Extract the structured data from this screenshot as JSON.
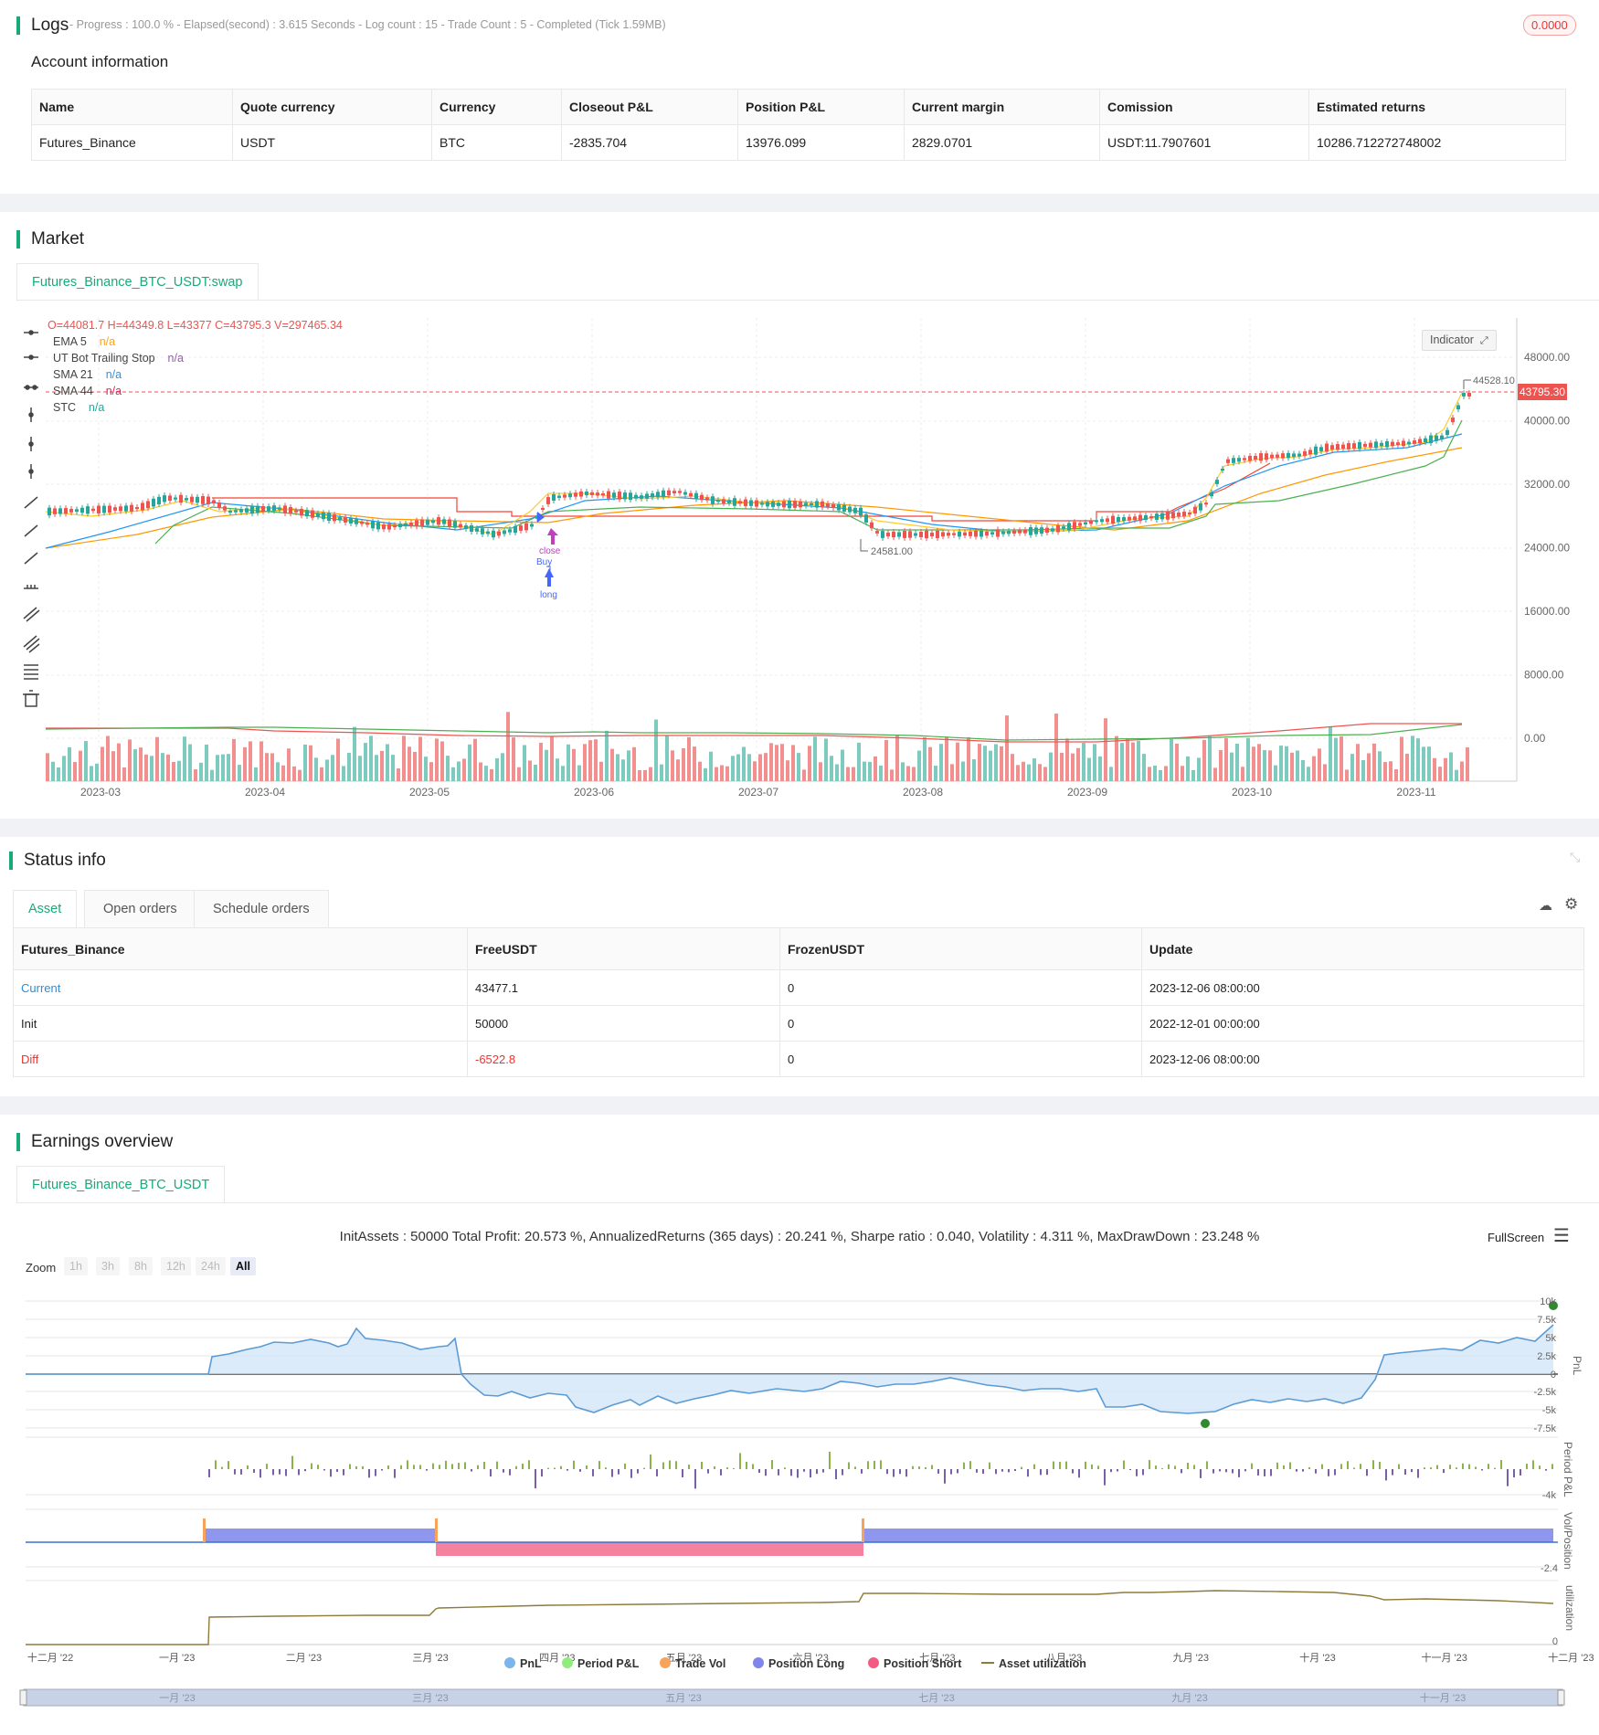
{
  "logs": {
    "title": "Logs",
    "meta": "- Progress : 100.0 % - Elapsed(second) : 3.615  Seconds - Log count : 15 - Trade Count : 5 - Completed (Tick 1.59MB)",
    "badge": "0.0000"
  },
  "account": {
    "title": "Account information",
    "columns": [
      "Name",
      "Quote currency",
      "Currency",
      "Closeout P&L",
      "Position P&L",
      "Current margin",
      "Comission",
      "Estimated returns"
    ],
    "row": [
      "Futures_Binance",
      "USDT",
      "BTC",
      "-2835.704",
      "13976.099",
      "2829.0701",
      "USDT:11.7907601",
      "10286.712272748002"
    ]
  },
  "market": {
    "title": "Market",
    "tab": "Futures_Binance_BTC_USDT:swap",
    "ohlc": "O=44081.7 H=44349.8 L=43377 C=43795.3 V=297465.34",
    "legend": [
      {
        "name": "EMA 5",
        "value": "n/a",
        "color": "#f7a325"
      },
      {
        "name": "UT Bot Trailing Stop",
        "value": "n/a",
        "color": "#9b59b6"
      },
      {
        "name": "SMA 21",
        "value": "n/a",
        "color": "#2196f3"
      },
      {
        "name": "SMA 44",
        "value": "n/a",
        "color": "#e91e63"
      },
      {
        "name": "STC",
        "value": "n/a",
        "color": "#26a69a"
      }
    ],
    "indicator_button": "Indicator",
    "y_ticks": [
      "48000.00",
      "40000.00",
      "32000.00",
      "24000.00",
      "16000.00",
      "8000.00",
      "0.00"
    ],
    "x_ticks": [
      "2023-03",
      "2023-04",
      "2023-05",
      "2023-06",
      "2023-07",
      "2023-08",
      "2023-09",
      "2023-10",
      "2023-11"
    ],
    "last_price": "43795.30",
    "high_label": "44528.10",
    "low_label": "24581.00",
    "markers": [
      "close",
      "Buy",
      "long"
    ]
  },
  "status": {
    "title": "Status info",
    "tabs": [
      "Asset",
      "Open orders",
      "Schedule orders"
    ],
    "columns": [
      "Futures_Binance",
      "FreeUSDT",
      "FrozenUSDT",
      "Update"
    ],
    "rows": [
      [
        "Current",
        "43477.1",
        "0",
        "2023-12-06 08:00:00"
      ],
      [
        "Init",
        "50000",
        "0",
        "2022-12-01 00:00:00"
      ],
      [
        "Diff",
        "-6522.8",
        "0",
        "2023-12-06 08:00:00"
      ]
    ]
  },
  "earnings": {
    "title": "Earnings overview",
    "tab": "Futures_Binance_BTC_USDT",
    "summary": "InitAssets : 50000 Total Profit: 20.573 %, AnnualizedReturns (365 days) : 20.241 %, Sharpe ratio : 0.040, Volatility : 4.311 %, MaxDrawDown : 23.248 %",
    "fullscreen": "FullScreen",
    "zoom_label": "Zoom",
    "zoom_buttons": [
      "1h",
      "3h",
      "8h",
      "12h",
      "24h",
      "All"
    ],
    "pnl_ticks": [
      "10k",
      "7.5k",
      "5k",
      "2.5k",
      "0",
      "-2.5k",
      "-5k",
      "-7.5k"
    ],
    "period_tick": "-4k",
    "vol_tick": "-2.4",
    "util_tick": "0",
    "axis_titles": [
      "PnL",
      "Period P&L",
      "Vol/Position",
      "utilization"
    ],
    "x_ticks": [
      "十二月 '22",
      "一月 '23",
      "二月 '23",
      "三月 '23",
      "四月 '23",
      "五月 '23",
      "六月 '23",
      "七月 '23",
      "八月 '23",
      "九月 '23",
      "十月 '23",
      "十一月 '23",
      "十二月 '23"
    ],
    "nav_ticks": [
      "一月 '23",
      "三月 '23",
      "五月 '23",
      "七月 '23",
      "九月 '23",
      "十一月 '23"
    ],
    "legend": [
      {
        "name": "PnL",
        "color": "#7cb5ec"
      },
      {
        "name": "Period P&L",
        "color": "#90ed7d"
      },
      {
        "name": "Trade Vol",
        "color": "#f7a35c"
      },
      {
        "name": "Position Long",
        "color": "#8085e9"
      },
      {
        "name": "Position Short",
        "color": "#f15c80"
      },
      {
        "name": "Asset utilization",
        "color": "#8d7b3a"
      }
    ]
  }
}
